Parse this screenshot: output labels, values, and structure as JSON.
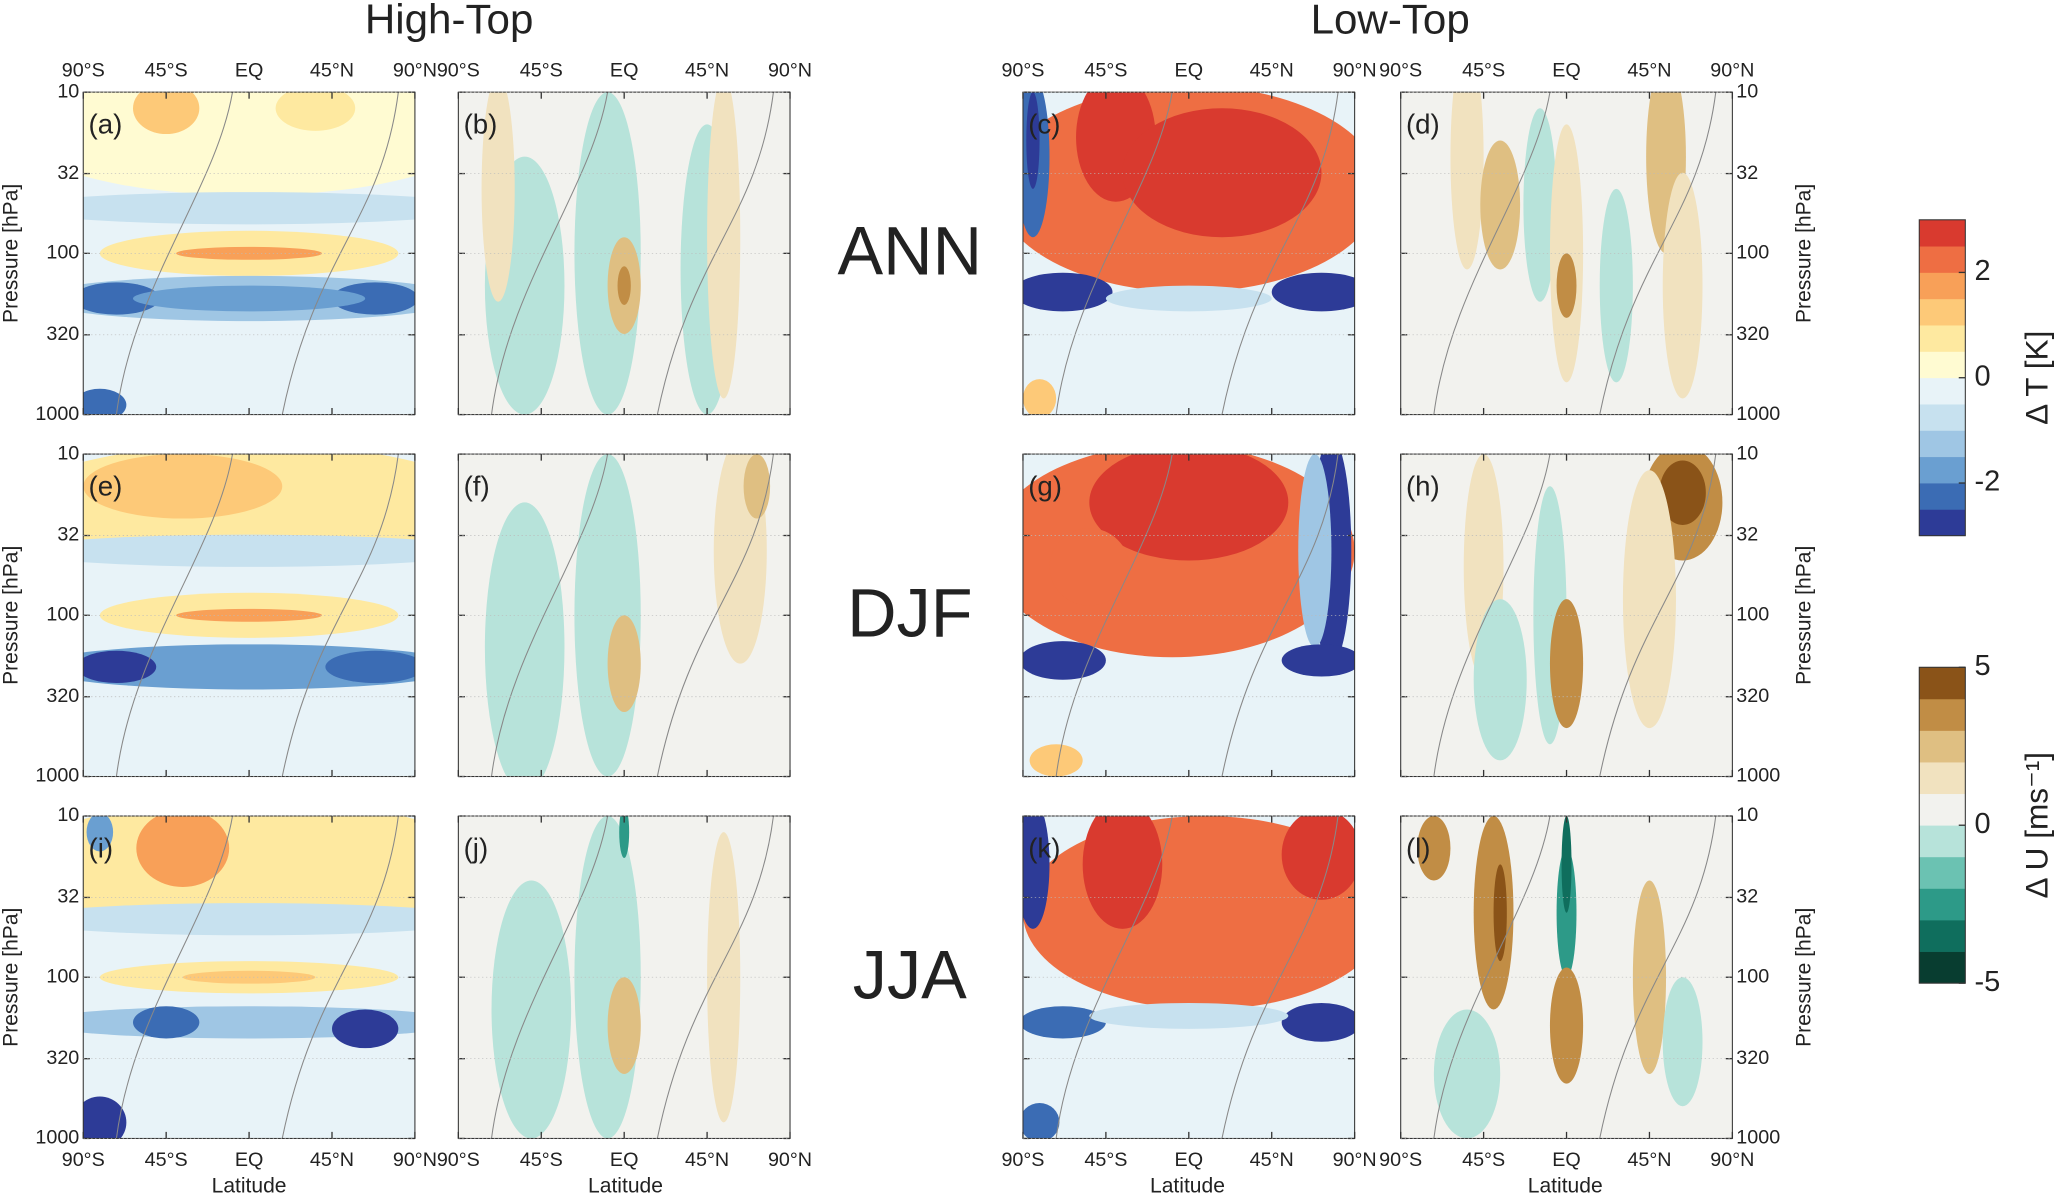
{
  "titles": [
    "High-Top",
    "Low-Top"
  ],
  "row_labels": [
    "ANN",
    "DJF",
    "JJA"
  ],
  "panels": [
    "(a)",
    "(b)",
    "(c)",
    "(d)",
    "(e)",
    "(f)",
    "(g)",
    "(h)",
    "(i)",
    "(j)",
    "(k)",
    "(l)"
  ],
  "latitude_ticks": [
    "90°S",
    "45°S",
    "EQ",
    "45°N",
    "90°N"
  ],
  "x_label": "Latitude",
  "y_label": "Pressure [hPa]",
  "ylim": [
    10,
    1000
  ],
  "log_scale": true,
  "yticks": [
    10,
    32,
    100,
    320,
    1000
  ],
  "colorbars": [
    {
      "label": "Δ T [K]",
      "lim": [
        -3,
        3
      ],
      "ticks": [
        -2,
        0,
        2
      ],
      "colors": [
        "#2d3b97",
        "#3b6cb4",
        "#6a9fd1",
        "#9fc6e4",
        "#c7e1ef",
        "#e8f3f8",
        "#fffbd2",
        "#fee9a0",
        "#fdc978",
        "#f8a058",
        "#ee6e43",
        "#d93a2f"
      ]
    },
    {
      "label": "Δ U [ms⁻¹]",
      "lim": [
        -5,
        5
      ],
      "ticks": [
        -5,
        0,
        5
      ],
      "colors": [
        "#083d30",
        "#0f6e5d",
        "#2d9a88",
        "#6bc2b2",
        "#b7e3da",
        "#f2f2ee",
        "#f1e2bf",
        "#dfbf82",
        "#c18d45",
        "#8a5318"
      ]
    }
  ]
}
